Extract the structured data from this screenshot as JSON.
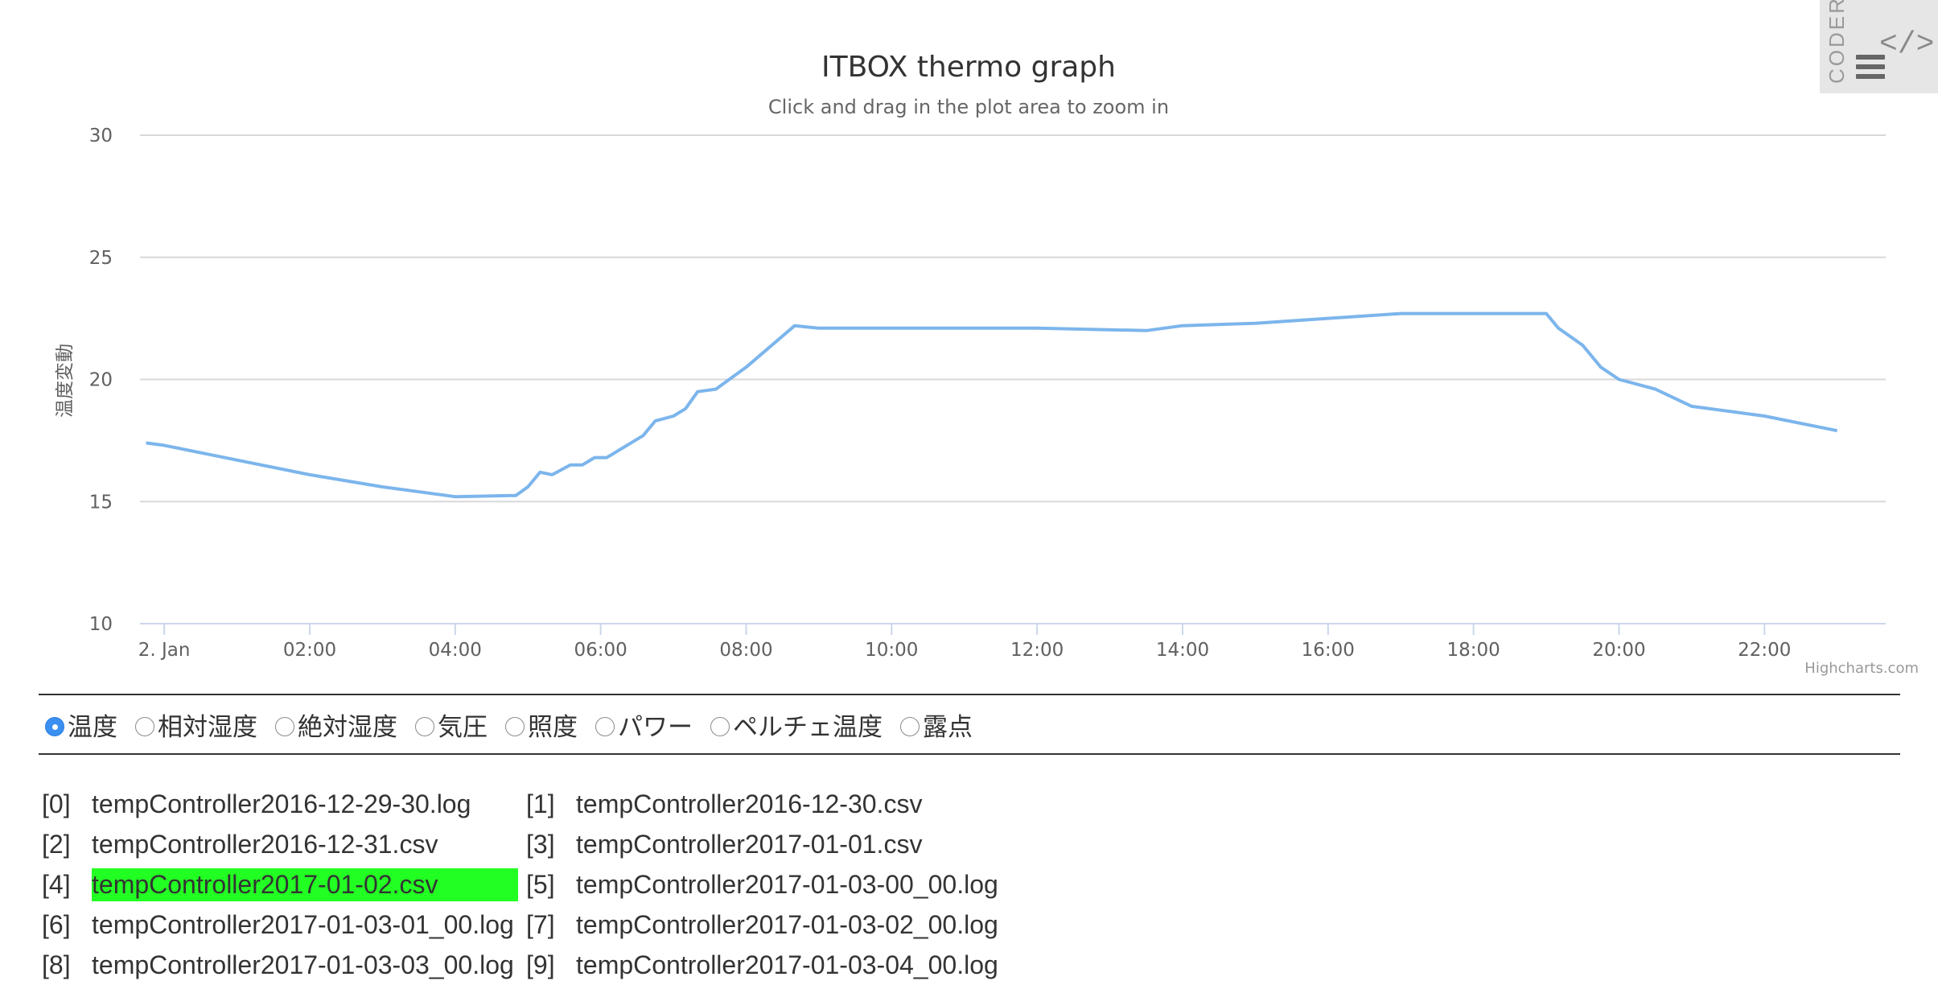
{
  "chart_data": {
    "type": "line",
    "title": "ITBOX thermo graph",
    "subtitle": "Click and drag in the plot area to zoom in",
    "ylabel": "温度変動",
    "ylim": [
      10,
      30
    ],
    "yticks": [
      10,
      15,
      20,
      25,
      30
    ],
    "xlim": [
      "2017-01-01T23:40",
      "2017-01-02T23:40"
    ],
    "xticks": [
      {
        "label": "2. Jan",
        "value": "2017-01-02T00:00"
      },
      {
        "label": "02:00",
        "value": "2017-01-02T02:00"
      },
      {
        "label": "04:00",
        "value": "2017-01-02T04:00"
      },
      {
        "label": "06:00",
        "value": "2017-01-02T06:00"
      },
      {
        "label": "08:00",
        "value": "2017-01-02T08:00"
      },
      {
        "label": "10:00",
        "value": "2017-01-02T10:00"
      },
      {
        "label": "12:00",
        "value": "2017-01-02T12:00"
      },
      {
        "label": "14:00",
        "value": "2017-01-02T14:00"
      },
      {
        "label": "16:00",
        "value": "2017-01-02T16:00"
      },
      {
        "label": "18:00",
        "value": "2017-01-02T18:00"
      },
      {
        "label": "20:00",
        "value": "2017-01-02T20:00"
      },
      {
        "label": "22:00",
        "value": "2017-01-02T22:00"
      }
    ],
    "grid": true,
    "legend": "none",
    "credits": "Highcharts.com",
    "color": "#7cb5ec",
    "series": [
      {
        "values": [
          [
            "2017-01-01T23:45",
            17.4
          ],
          [
            "2017-01-02T00:00",
            17.3
          ],
          [
            "2017-01-02T01:00",
            16.7
          ],
          [
            "2017-01-02T02:00",
            16.1
          ],
          [
            "2017-01-02T03:00",
            15.6
          ],
          [
            "2017-01-02T04:00",
            15.2
          ],
          [
            "2017-01-02T04:50",
            15.25
          ],
          [
            "2017-01-02T05:00",
            15.6
          ],
          [
            "2017-01-02T05:10",
            16.2
          ],
          [
            "2017-01-02T05:20",
            16.1
          ],
          [
            "2017-01-02T05:35",
            16.5
          ],
          [
            "2017-01-02T05:45",
            16.5
          ],
          [
            "2017-01-02T05:55",
            16.8
          ],
          [
            "2017-01-02T06:05",
            16.8
          ],
          [
            "2017-01-02T06:25",
            17.4
          ],
          [
            "2017-01-02T06:35",
            17.7
          ],
          [
            "2017-01-02T06:45",
            18.3
          ],
          [
            "2017-01-02T07:00",
            18.5
          ],
          [
            "2017-01-02T07:10",
            18.8
          ],
          [
            "2017-01-02T07:20",
            19.5
          ],
          [
            "2017-01-02T07:35",
            19.6
          ],
          [
            "2017-01-02T08:00",
            20.5
          ],
          [
            "2017-01-02T08:40",
            22.2
          ],
          [
            "2017-01-02T09:00",
            22.1
          ],
          [
            "2017-01-02T10:00",
            22.1
          ],
          [
            "2017-01-02T12:00",
            22.1
          ],
          [
            "2017-01-02T13:30",
            22.0
          ],
          [
            "2017-01-02T14:00",
            22.2
          ],
          [
            "2017-01-02T15:00",
            22.3
          ],
          [
            "2017-01-02T16:00",
            22.5
          ],
          [
            "2017-01-02T17:00",
            22.7
          ],
          [
            "2017-01-02T18:00",
            22.7
          ],
          [
            "2017-01-02T19:00",
            22.7
          ],
          [
            "2017-01-02T19:10",
            22.1
          ],
          [
            "2017-01-02T19:30",
            21.4
          ],
          [
            "2017-01-02T19:45",
            20.5
          ],
          [
            "2017-01-02T20:00",
            20.0
          ],
          [
            "2017-01-02T20:30",
            19.6
          ],
          [
            "2017-01-02T21:00",
            18.9
          ],
          [
            "2017-01-02T22:00",
            18.5
          ],
          [
            "2017-01-02T23:00",
            17.9
          ]
        ]
      }
    ]
  },
  "coder": {
    "label": "CODER",
    "glyph": "</>"
  },
  "radio_options": [
    {
      "label": "温度",
      "checked": true
    },
    {
      "label": "相対湿度",
      "checked": false
    },
    {
      "label": "絶対湿度",
      "checked": false
    },
    {
      "label": "気圧",
      "checked": false
    },
    {
      "label": "照度",
      "checked": false
    },
    {
      "label": "パワー",
      "checked": false
    },
    {
      "label": "ペルチェ温度",
      "checked": false
    },
    {
      "label": "露点",
      "checked": false
    }
  ],
  "files": [
    {
      "index": "[0]",
      "name": "tempController2016-12-29-30.log",
      "selected": false
    },
    {
      "index": "[1]",
      "name": "tempController2016-12-30.csv",
      "selected": false
    },
    {
      "index": "[2]",
      "name": "tempController2016-12-31.csv",
      "selected": false
    },
    {
      "index": "[3]",
      "name": "tempController2017-01-01.csv",
      "selected": false
    },
    {
      "index": "[4]",
      "name": "tempController2017-01-02.csv",
      "selected": true
    },
    {
      "index": "[5]",
      "name": "tempController2017-01-03-00_00.log",
      "selected": false
    },
    {
      "index": "[6]",
      "name": "tempController2017-01-03-01_00.log",
      "selected": false
    },
    {
      "index": "[7]",
      "name": "tempController2017-01-03-02_00.log",
      "selected": false
    },
    {
      "index": "[8]",
      "name": "tempController2017-01-03-03_00.log",
      "selected": false
    },
    {
      "index": "[9]",
      "name": "tempController2017-01-03-04_00.log",
      "selected": false
    }
  ]
}
